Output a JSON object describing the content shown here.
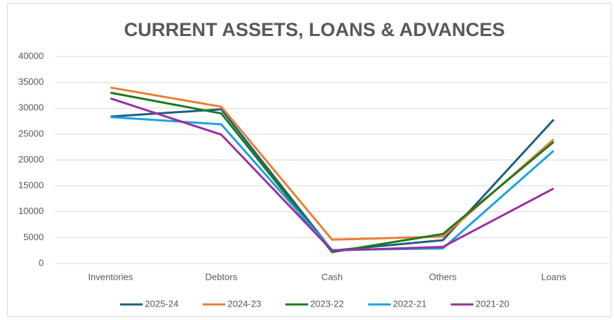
{
  "chart_data": {
    "type": "line",
    "title": "CURRENT ASSETS, LOANS & ADVANCES",
    "categories": [
      "Inventories",
      "Debtors",
      "Cash",
      "Others",
      "Loans"
    ],
    "series": [
      {
        "name": "2025-24",
        "color": "#1f5f7e",
        "values": [
          28400,
          29800,
          2500,
          4500,
          27800
        ]
      },
      {
        "name": "2024-23",
        "color": "#ed7d31",
        "values": [
          34000,
          30300,
          4600,
          5200,
          24000
        ]
      },
      {
        "name": "2023-22",
        "color": "#1e7a1e",
        "values": [
          33000,
          29000,
          2200,
          5700,
          23500
        ]
      },
      {
        "name": "2022-21",
        "color": "#1ca3de",
        "values": [
          28300,
          26900,
          2600,
          2900,
          21800
        ]
      },
      {
        "name": "2021-20",
        "color": "#9c2f9e",
        "values": [
          31900,
          24900,
          2500,
          3200,
          14500
        ]
      }
    ],
    "ylim": [
      0,
      40000
    ],
    "yticks": [
      0,
      5000,
      10000,
      15000,
      20000,
      25000,
      30000,
      35000,
      40000
    ],
    "grid": true,
    "legend": "bottom"
  }
}
